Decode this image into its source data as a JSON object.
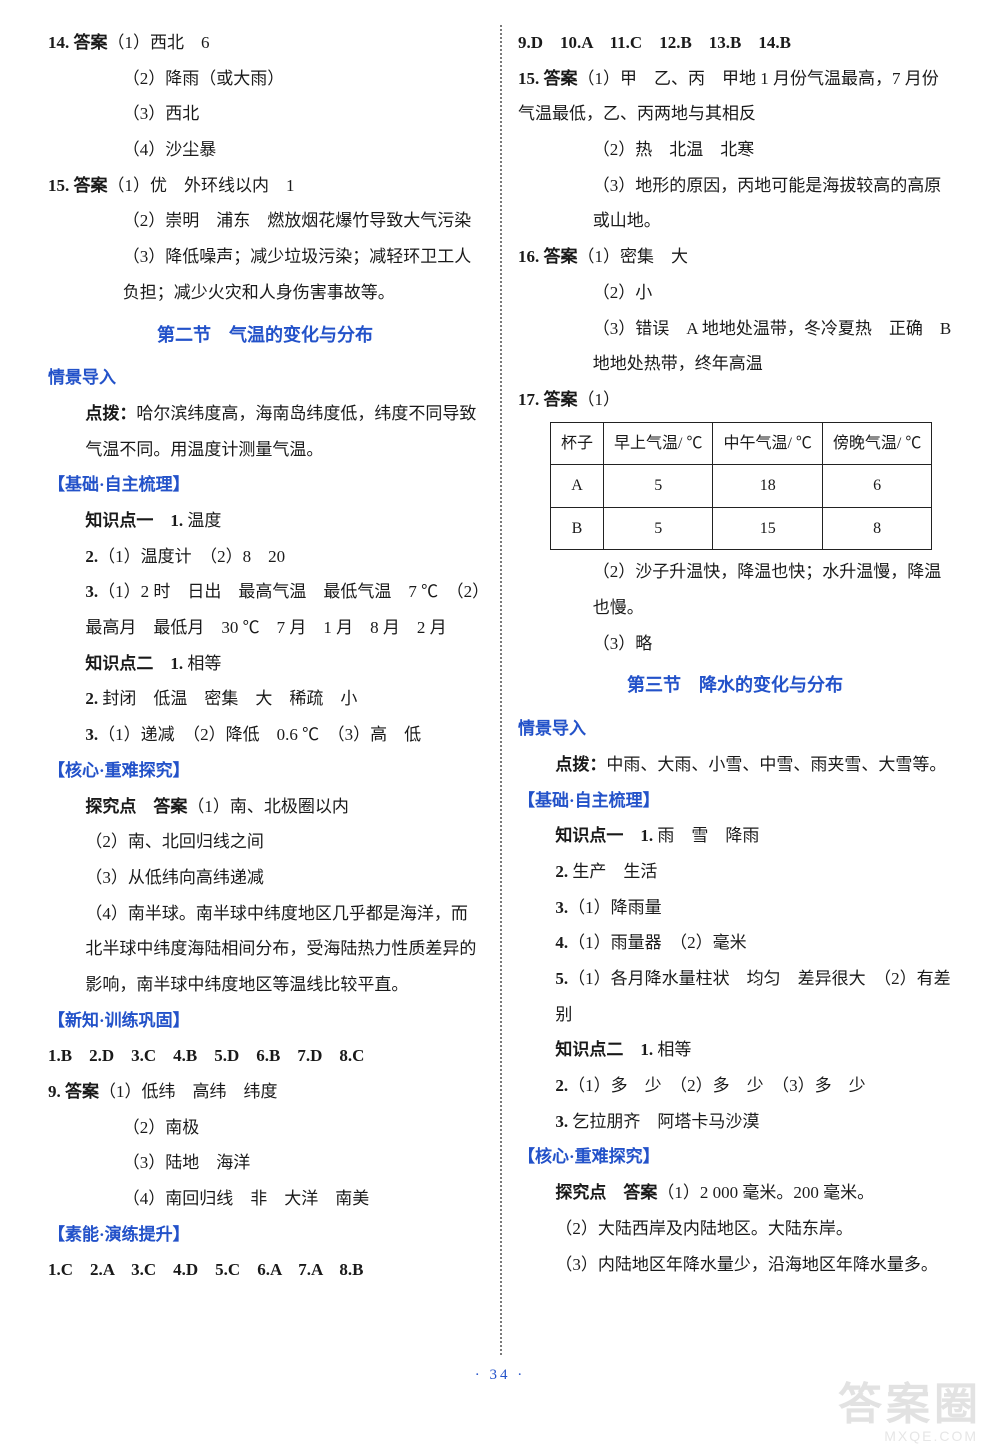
{
  "page_number": "· 34 ·",
  "watermark_main": "答案圈",
  "watermark_sub": "MXQE.COM",
  "colors": {
    "text": "#1a1a1a",
    "blue": "#2352c9",
    "divider": "#7a7a7a",
    "background": "#ffffff",
    "watermark": "#e2e2e2"
  },
  "left": {
    "q14_head": "14. 答案",
    "q14_1": "（1）西北　6",
    "q14_2": "（2）降雨（或大雨）",
    "q14_3": "（3）西北",
    "q14_4": "（4）沙尘暴",
    "q15_head": "15. 答案",
    "q15_1": "（1）优　外环线以内　1",
    "q15_2": "（2）崇明　浦东　燃放烟花爆竹导致大气污染",
    "q15_3": "（3）降低噪声；减少垃圾污染；减轻环卫工人负担；减少火灾和人身伤害事故等。",
    "sec2_title": "第二节　气温的变化与分布",
    "qjdr": "情景导入",
    "dianbo1": "点拨：",
    "dianbo1_text": "哈尔滨纬度高，海南岛纬度低，纬度不同导致气温不同。用温度计测量气温。",
    "jczz": "【基础·自主梳理】",
    "kp1_head": "知识点一　1.",
    "kp1_1": " 温度",
    "kp1_2a": "2.",
    "kp1_2": "（1）温度计　（2）8　20",
    "kp1_3a": "3.",
    "kp1_3": "（1）2 时　日出　最高气温　最低气温　7 ℃　（2）最高月　最低月　30 ℃　7 月　1 月　8 月　2 月",
    "kp2_head": "知识点二　1.",
    "kp2_1": " 相等",
    "kp2_2a": "2.",
    "kp2_2": " 封闭　低温　密集　大　稀疏　小",
    "kp2_3a": "3.",
    "kp2_3": "（1）递减　（2）降低　0.6 ℃　（3）高　低",
    "hxzn": "【核心·重难探究】",
    "tjd_head": "探究点　答案",
    "tjd_1": "（1）南、北极圈以内",
    "tjd_2": "（2）南、北回归线之间",
    "tjd_3": "（3）从低纬向高纬递减",
    "tjd_4": "（4）南半球。南半球中纬度地区几乎都是海洋，而北半球中纬度海陆相间分布，受海陆热力性质差异的影响，南半球中纬度地区等温线比较平直。",
    "xzxl": "【新知·训练巩固】",
    "xl_row1": "1.B　2.D　3.C　4.B　5.D　6.B　7.D　8.C",
    "q9_head": "9. 答案",
    "q9_1": "（1）低纬　高纬　纬度",
    "q9_2": "（2）南极",
    "q9_3": "（3）陆地　海洋",
    "q9_4": "（4）南回归线　非　大洋　南美",
    "sylt": "【素能·演练提升】",
    "sylt_row": "1.C　2.A　3.C　4.D　5.C　6.A　7.A　8.B"
  },
  "right": {
    "row1": "9.D　10.A　11.C　12.B　13.B　14.B",
    "q15_head": "15. 答案",
    "q15_1": "（1）甲　乙、丙　甲地 1 月份气温最高，7 月份气温最低，乙、丙两地与其相反",
    "q15_2": "（2）热　北温　北寒",
    "q15_3": "（3）地形的原因，丙地可能是海拔较高的高原或山地。",
    "q16_head": "16. 答案",
    "q16_1": "（1）密集　大",
    "q16_2": "（2）小",
    "q16_3": "（3）错误　A 地地处温带，冬冷夏热　正确　B 地地处热带，终年高温",
    "q17_head": "17. 答案",
    "q17_1": "（1）",
    "table": {
      "headers": [
        "杯子",
        "早上气温/ ℃",
        "中午气温/ ℃",
        "傍晚气温/ ℃"
      ],
      "rows": [
        [
          "A",
          "5",
          "18",
          "6"
        ],
        [
          "B",
          "5",
          "15",
          "8"
        ]
      ]
    },
    "q17_2": "（2）沙子升温快，降温也快；水升温慢，降温也慢。",
    "q17_3": "（3）略",
    "sec3_title": "第三节　降水的变化与分布",
    "qjdr": "情景导入",
    "dianbo2_head": "点拨：",
    "dianbo2_text": "中雨、大雨、小雪、中雪、雨夹雪、大雪等。",
    "jczz": "【基础·自主梳理】",
    "kp1_head": "知识点一　1.",
    "kp1_1": " 雨　雪　降雨",
    "kp1_2a": "2.",
    "kp1_2": " 生产　生活",
    "kp1_3a": "3.",
    "kp1_3": "（1）降雨量",
    "kp1_4a": "4.",
    "kp1_4": "（1）雨量器　（2）毫米",
    "kp1_5a": "5.",
    "kp1_5": "（1）各月降水量柱状　均匀　差异很大　（2）有差别",
    "kp2_head": "知识点二　1.",
    "kp2_1": " 相等",
    "kp2_2a": "2.",
    "kp2_2": "（1）多　少　（2）多　少　（3）多　少",
    "kp2_3a": "3.",
    "kp2_3": " 乞拉朋齐　阿塔卡马沙漠",
    "hxzn": "【核心·重难探究】",
    "tjd_head": "探究点　答案",
    "tjd_1": "（1）2 000 毫米。200 毫米。",
    "tjd_2": "（2）大陆西岸及内陆地区。大陆东岸。",
    "tjd_3": "（3）内陆地区年降水量少，沿海地区年降水量多。"
  }
}
